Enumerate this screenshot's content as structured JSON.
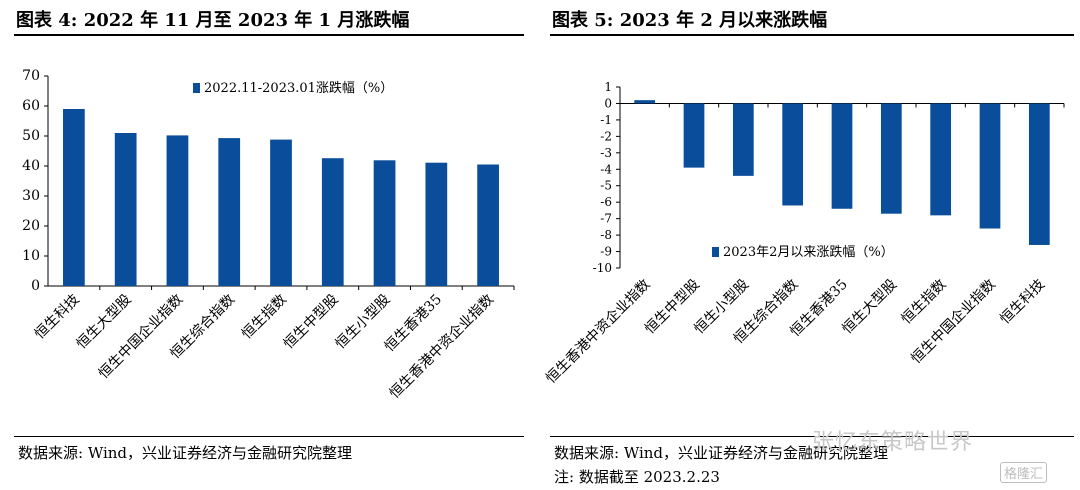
{
  "left": {
    "title": "图表 4:  2022 年 11 月至 2023 年 1 月涨跌幅",
    "source": "数据来源:  Wind，兴业证券经济与金融研究院整理"
  },
  "right": {
    "title": "图表 5:  2023 年 2 月以来涨跌幅",
    "source": "数据来源:  Wind，兴业证券经济与金融研究院整理",
    "note": "注:  数据截至 2023.2.23"
  },
  "watermark": {
    "text": "张忆东策略世界",
    "logo": "格隆汇"
  },
  "chart_data": [
    {
      "type": "bar",
      "categories": [
        "恒生科技",
        "恒生大型股",
        "恒生中国企业指数",
        "恒生综合指数",
        "恒生指数",
        "恒生中型股",
        "恒生小型股",
        "恒生香港35",
        "恒生香港中资企业指数"
      ],
      "series": [
        {
          "name": "2022.11-2023.01涨跌幅（%）",
          "values": [
            59.0,
            51.0,
            50.2,
            49.3,
            48.8,
            42.6,
            41.9,
            41.1,
            40.5
          ]
        }
      ],
      "ylim": [
        0,
        70
      ],
      "yticks": [
        0,
        10,
        20,
        30,
        40,
        50,
        60,
        70
      ],
      "legend": "top-center",
      "grid": false,
      "color": "#0a4e9b"
    },
    {
      "type": "bar",
      "categories": [
        "恒生香港中资企业指数",
        "恒生中型股",
        "恒生小型股",
        "恒生综合指数",
        "恒生香港35",
        "恒生大型股",
        "恒生指数",
        "恒生中国企业指数",
        "恒生科技"
      ],
      "series": [
        {
          "name": "2023年2月以来涨跌幅（%）",
          "values": [
            0.2,
            -3.9,
            -4.4,
            -6.2,
            -6.4,
            -6.7,
            -6.8,
            -7.6,
            -8.6
          ]
        }
      ],
      "ylim": [
        -10,
        1
      ],
      "yticks": [
        1,
        0,
        -1,
        -2,
        -3,
        -4,
        -5,
        -6,
        -7,
        -8,
        -9,
        -10
      ],
      "legend": "bottom-center",
      "grid": false,
      "color": "#0a4e9b"
    }
  ]
}
